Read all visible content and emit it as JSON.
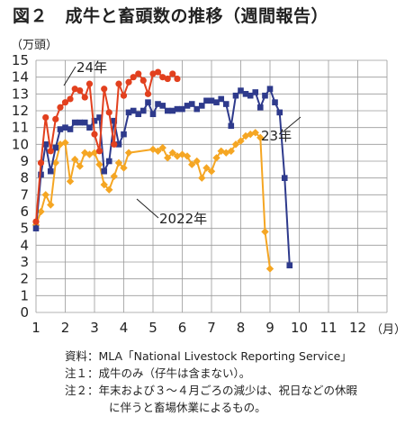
{
  "title": "図２　成牛と畜頭数の推移（週間報告）",
  "colors": {
    "y2022": "#F5A623",
    "y2023": "#2E3A8C",
    "y2024": "#E2401E",
    "grid": "#9a9a9a"
  },
  "chart_data": {
    "type": "line",
    "ylabel": "（万頭）",
    "xlabel": "（月）",
    "ylim": [
      0,
      15
    ],
    "yticks": [
      0,
      1,
      2,
      3,
      4,
      5,
      6,
      7,
      8,
      9,
      10,
      11,
      12,
      13,
      14,
      15
    ],
    "xlim": [
      1,
      13
    ],
    "xticks": [
      1,
      2,
      3,
      4,
      5,
      6,
      7,
      8,
      9,
      10,
      11,
      12
    ],
    "grid": true,
    "series": [
      {
        "name": "2022年",
        "marker": "diamond",
        "points": [
          [
            1.0,
            5.2
          ],
          [
            1.17,
            6.0
          ],
          [
            1.33,
            7.0
          ],
          [
            1.5,
            6.4
          ],
          [
            1.67,
            8.9
          ],
          [
            1.83,
            10.0
          ],
          [
            2.0,
            10.1
          ],
          [
            2.17,
            7.8
          ],
          [
            2.33,
            9.1
          ],
          [
            2.5,
            8.7
          ],
          [
            2.67,
            9.5
          ],
          [
            2.83,
            9.4
          ],
          [
            3.0,
            9.5
          ],
          [
            3.17,
            8.8
          ],
          [
            3.33,
            7.6
          ],
          [
            3.5,
            7.3
          ],
          [
            3.67,
            8.1
          ],
          [
            3.83,
            8.9
          ],
          [
            4.0,
            8.6
          ],
          [
            4.17,
            9.5
          ],
          [
            5.0,
            9.7
          ],
          [
            5.17,
            9.6
          ],
          [
            5.33,
            9.8
          ],
          [
            5.5,
            9.2
          ],
          [
            5.67,
            9.5
          ],
          [
            5.83,
            9.3
          ],
          [
            6.0,
            9.4
          ],
          [
            6.17,
            9.3
          ],
          [
            6.33,
            8.8
          ],
          [
            6.5,
            9.0
          ],
          [
            6.67,
            8.0
          ],
          [
            6.83,
            8.6
          ],
          [
            7.0,
            8.4
          ],
          [
            7.17,
            9.2
          ],
          [
            7.33,
            9.6
          ],
          [
            7.5,
            9.5
          ],
          [
            7.67,
            9.6
          ],
          [
            7.83,
            10.0
          ],
          [
            8.0,
            10.2
          ],
          [
            8.17,
            10.5
          ],
          [
            8.33,
            10.6
          ],
          [
            8.5,
            10.7
          ],
          [
            8.67,
            10.4
          ],
          [
            8.83,
            4.8
          ],
          [
            9.0,
            2.6
          ]
        ]
      },
      {
        "name": "23年",
        "marker": "square",
        "points": [
          [
            1.0,
            5.0
          ],
          [
            1.17,
            8.2
          ],
          [
            1.33,
            10.0
          ],
          [
            1.5,
            8.4
          ],
          [
            1.67,
            9.8
          ],
          [
            1.83,
            10.9
          ],
          [
            2.0,
            11.0
          ],
          [
            2.17,
            10.9
          ],
          [
            2.33,
            11.3
          ],
          [
            2.5,
            11.3
          ],
          [
            2.67,
            11.3
          ],
          [
            2.83,
            11.0
          ],
          [
            3.0,
            11.4
          ],
          [
            3.17,
            11.6
          ],
          [
            3.33,
            8.4
          ],
          [
            3.5,
            9.0
          ],
          [
            3.67,
            11.4
          ],
          [
            3.83,
            10.0
          ],
          [
            4.0,
            10.6
          ],
          [
            4.17,
            11.9
          ],
          [
            4.33,
            12.0
          ],
          [
            4.5,
            11.8
          ],
          [
            4.67,
            12.0
          ],
          [
            4.83,
            12.5
          ],
          [
            5.0,
            11.8
          ],
          [
            5.17,
            12.4
          ],
          [
            5.33,
            12.3
          ],
          [
            5.5,
            12.0
          ],
          [
            5.67,
            12.0
          ],
          [
            5.83,
            12.1
          ],
          [
            6.0,
            12.1
          ],
          [
            6.17,
            12.3
          ],
          [
            6.33,
            12.4
          ],
          [
            6.5,
            12.1
          ],
          [
            6.67,
            12.3
          ],
          [
            6.83,
            12.6
          ],
          [
            7.0,
            12.6
          ],
          [
            7.17,
            12.5
          ],
          [
            7.33,
            12.7
          ],
          [
            7.5,
            12.4
          ],
          [
            7.67,
            11.1
          ],
          [
            7.83,
            12.9
          ],
          [
            8.0,
            13.2
          ],
          [
            8.17,
            13.0
          ],
          [
            8.33,
            12.9
          ],
          [
            8.5,
            13.1
          ],
          [
            8.67,
            12.2
          ],
          [
            8.83,
            12.9
          ],
          [
            9.0,
            13.3
          ],
          [
            9.17,
            12.5
          ],
          [
            9.33,
            11.9
          ],
          [
            9.5,
            8.0
          ],
          [
            9.67,
            2.8
          ]
        ]
      },
      {
        "name": "24年",
        "marker": "circle",
        "points": [
          [
            1.0,
            5.4
          ],
          [
            1.17,
            8.9
          ],
          [
            1.33,
            11.6
          ],
          [
            1.5,
            9.6
          ],
          [
            1.67,
            11.5
          ],
          [
            1.83,
            12.2
          ],
          [
            2.0,
            12.5
          ],
          [
            2.17,
            12.7
          ],
          [
            2.33,
            13.3
          ],
          [
            2.5,
            13.2
          ],
          [
            2.67,
            12.8
          ],
          [
            2.83,
            13.6
          ],
          [
            3.0,
            10.6
          ],
          [
            3.17,
            9.6
          ],
          [
            3.33,
            13.3
          ],
          [
            3.5,
            11.9
          ],
          [
            3.67,
            10.0
          ],
          [
            3.83,
            13.6
          ],
          [
            4.0,
            12.9
          ],
          [
            4.17,
            13.7
          ],
          [
            4.33,
            14.0
          ],
          [
            4.5,
            14.2
          ],
          [
            4.67,
            13.8
          ],
          [
            4.83,
            13.0
          ],
          [
            5.0,
            14.2
          ],
          [
            5.17,
            14.3
          ],
          [
            5.33,
            14.0
          ],
          [
            5.5,
            13.9
          ],
          [
            5.67,
            14.2
          ],
          [
            5.83,
            13.9
          ]
        ]
      }
    ],
    "annotations": [
      "24年",
      "23年",
      "2022年"
    ]
  },
  "notes": [
    "資料：MLA「National Livestock Reporting Service」",
    "注１：成牛のみ（仔牛は含まない）。",
    "注２：年末および３～４月ごろの減少は、祝日などの休暇",
    "に伴うと畜場休業によるもの。"
  ]
}
